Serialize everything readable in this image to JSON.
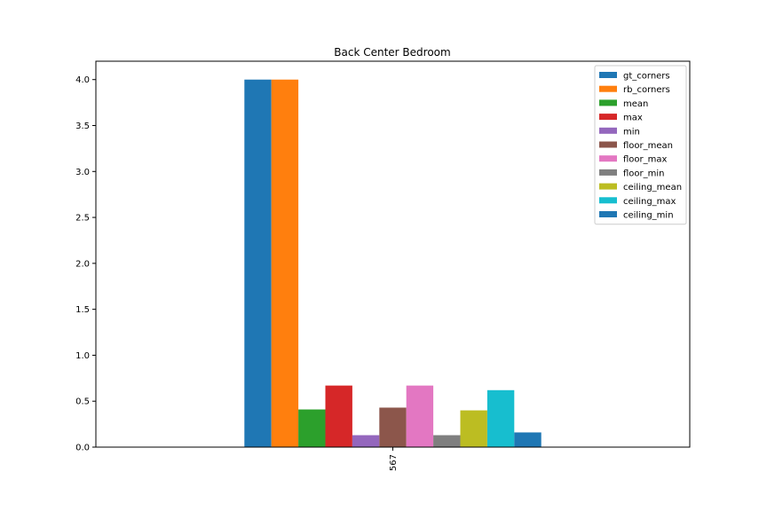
{
  "chart_data": {
    "type": "bar",
    "title": "Back Center Bedroom",
    "xlabel": "",
    "ylabel": "",
    "categories": [
      "567"
    ],
    "ylim": [
      0,
      4.2
    ],
    "yticks": [
      0.0,
      0.5,
      1.0,
      1.5,
      2.0,
      2.5,
      3.0,
      3.5,
      4.0
    ],
    "ytick_labels": [
      "0.0",
      "0.5",
      "1.0",
      "1.5",
      "2.0",
      "2.5",
      "3.0",
      "3.5",
      "4.0"
    ],
    "grid": false,
    "legend_position": "top-right",
    "series": [
      {
        "name": "gt_corners",
        "values": [
          4.0
        ],
        "color": "#1f77b4"
      },
      {
        "name": "rb_corners",
        "values": [
          4.0
        ],
        "color": "#ff7f0e"
      },
      {
        "name": "mean",
        "values": [
          0.41
        ],
        "color": "#2ca02c"
      },
      {
        "name": "max",
        "values": [
          0.67
        ],
        "color": "#d62728"
      },
      {
        "name": "min",
        "values": [
          0.13
        ],
        "color": "#9467bd"
      },
      {
        "name": "floor_mean",
        "values": [
          0.43
        ],
        "color": "#8c564b"
      },
      {
        "name": "floor_max",
        "values": [
          0.67
        ],
        "color": "#e377c2"
      },
      {
        "name": "floor_min",
        "values": [
          0.13
        ],
        "color": "#7f7f7f"
      },
      {
        "name": "ceiling_mean",
        "values": [
          0.4
        ],
        "color": "#bcbd22"
      },
      {
        "name": "ceiling_max",
        "values": [
          0.62
        ],
        "color": "#17becf"
      },
      {
        "name": "ceiling_min",
        "values": [
          0.16
        ],
        "color": "#1f77b4"
      }
    ]
  }
}
